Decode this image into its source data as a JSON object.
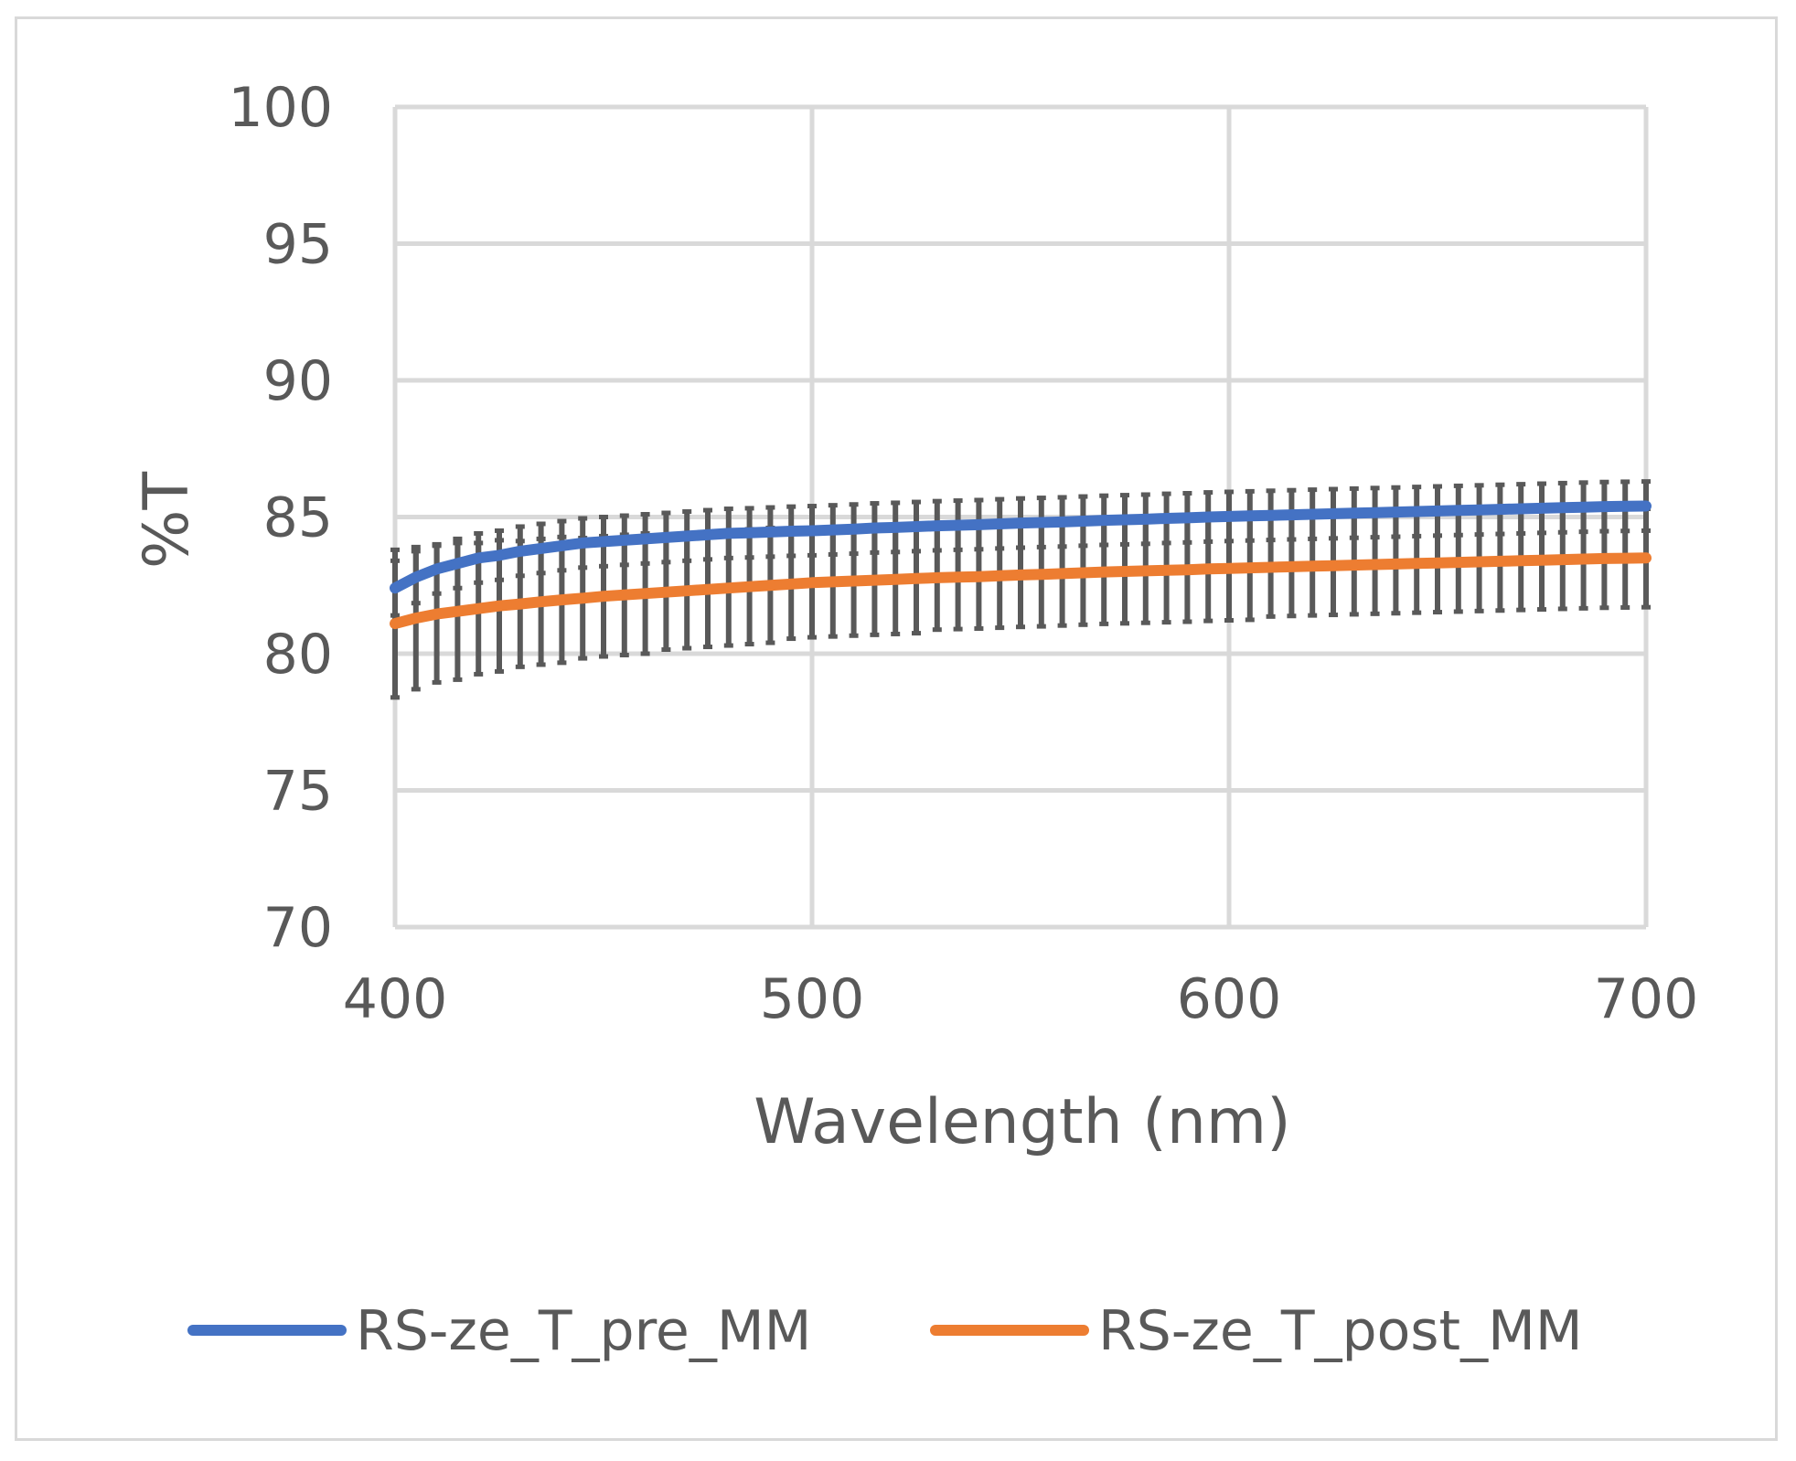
{
  "chart_data": {
    "type": "line",
    "title": "",
    "xlabel": "Wavelength (nm)",
    "ylabel": "%T",
    "xlim": [
      400,
      700
    ],
    "ylim": [
      70,
      100
    ],
    "xticks": [
      400,
      500,
      600,
      700
    ],
    "yticks": [
      70,
      75,
      80,
      85,
      90,
      95,
      100
    ],
    "grid": true,
    "legend_position": "bottom",
    "error_bar_color": "#595959",
    "x": [
      400,
      405,
      410,
      415,
      420,
      425,
      430,
      435,
      440,
      445,
      450,
      455,
      460,
      465,
      470,
      475,
      480,
      485,
      490,
      495,
      500,
      505,
      510,
      515,
      520,
      525,
      530,
      535,
      540,
      545,
      550,
      555,
      560,
      565,
      570,
      575,
      580,
      585,
      590,
      595,
      600,
      605,
      610,
      615,
      620,
      625,
      630,
      635,
      640,
      645,
      650,
      655,
      660,
      665,
      670,
      675,
      680,
      685,
      690,
      695,
      700
    ],
    "series": [
      {
        "name": "RS-ze_T_pre_MM",
        "color": "#4472c4",
        "values": [
          82.4,
          82.8,
          83.1,
          83.3,
          83.5,
          83.6,
          83.75,
          83.85,
          83.95,
          84.05,
          84.1,
          84.15,
          84.2,
          84.25,
          84.3,
          84.35,
          84.4,
          84.42,
          84.45,
          84.48,
          84.5,
          84.53,
          84.56,
          84.6,
          84.62,
          84.65,
          84.68,
          84.7,
          84.72,
          84.75,
          84.78,
          84.8,
          84.82,
          84.85,
          84.88,
          84.9,
          84.92,
          84.95,
          84.97,
          85.0,
          85.02,
          85.04,
          85.06,
          85.08,
          85.1,
          85.12,
          85.14,
          85.16,
          85.18,
          85.2,
          85.22,
          85.24,
          85.26,
          85.28,
          85.3,
          85.32,
          85.34,
          85.36,
          85.38,
          85.39,
          85.4
        ],
        "errors": [
          1.0,
          0.95,
          0.9,
          0.9,
          0.9,
          0.9,
          0.9,
          0.9,
          0.9,
          0.9,
          0.9,
          0.9,
          0.9,
          0.9,
          0.9,
          0.9,
          0.9,
          0.9,
          0.9,
          0.9,
          0.9,
          0.9,
          0.9,
          0.9,
          0.9,
          0.9,
          0.9,
          0.9,
          0.9,
          0.9,
          0.9,
          0.9,
          0.9,
          0.9,
          0.9,
          0.9,
          0.9,
          0.9,
          0.9,
          0.9,
          0.9,
          0.9,
          0.9,
          0.9,
          0.9,
          0.9,
          0.9,
          0.9,
          0.9,
          0.9,
          0.9,
          0.9,
          0.9,
          0.9,
          0.9,
          0.9,
          0.9,
          0.9,
          0.9,
          0.9,
          0.9
        ]
      },
      {
        "name": "RS-ze_T_post_MM",
        "color": "#ed7d31",
        "values": [
          81.1,
          81.3,
          81.45,
          81.55,
          81.65,
          81.75,
          81.82,
          81.9,
          81.97,
          82.03,
          82.1,
          82.15,
          82.2,
          82.25,
          82.3,
          82.35,
          82.4,
          82.45,
          82.5,
          82.55,
          82.6,
          82.63,
          82.66,
          82.69,
          82.72,
          82.75,
          82.78,
          82.8,
          82.82,
          82.85,
          82.88,
          82.9,
          82.93,
          82.96,
          82.99,
          83.01,
          83.03,
          83.05,
          83.07,
          83.1,
          83.12,
          83.14,
          83.16,
          83.18,
          83.2,
          83.22,
          83.24,
          83.26,
          83.28,
          83.3,
          83.32,
          83.34,
          83.36,
          83.38,
          83.4,
          83.42,
          83.44,
          83.46,
          83.48,
          83.49,
          83.5
        ],
        "errors": [
          2.7,
          2.6,
          2.5,
          2.5,
          2.4,
          2.4,
          2.3,
          2.3,
          2.3,
          2.2,
          2.2,
          2.2,
          2.2,
          2.1,
          2.1,
          2.1,
          2.1,
          2.1,
          2.1,
          2.0,
          2.0,
          2.0,
          2.0,
          2.0,
          2.0,
          2.0,
          1.9,
          1.9,
          1.9,
          1.9,
          1.9,
          1.9,
          1.9,
          1.9,
          1.9,
          1.9,
          1.9,
          1.9,
          1.9,
          1.9,
          1.9,
          1.9,
          1.8,
          1.8,
          1.8,
          1.8,
          1.8,
          1.8,
          1.8,
          1.8,
          1.8,
          1.8,
          1.8,
          1.8,
          1.8,
          1.8,
          1.8,
          1.8,
          1.8,
          1.8,
          1.8
        ]
      }
    ]
  }
}
